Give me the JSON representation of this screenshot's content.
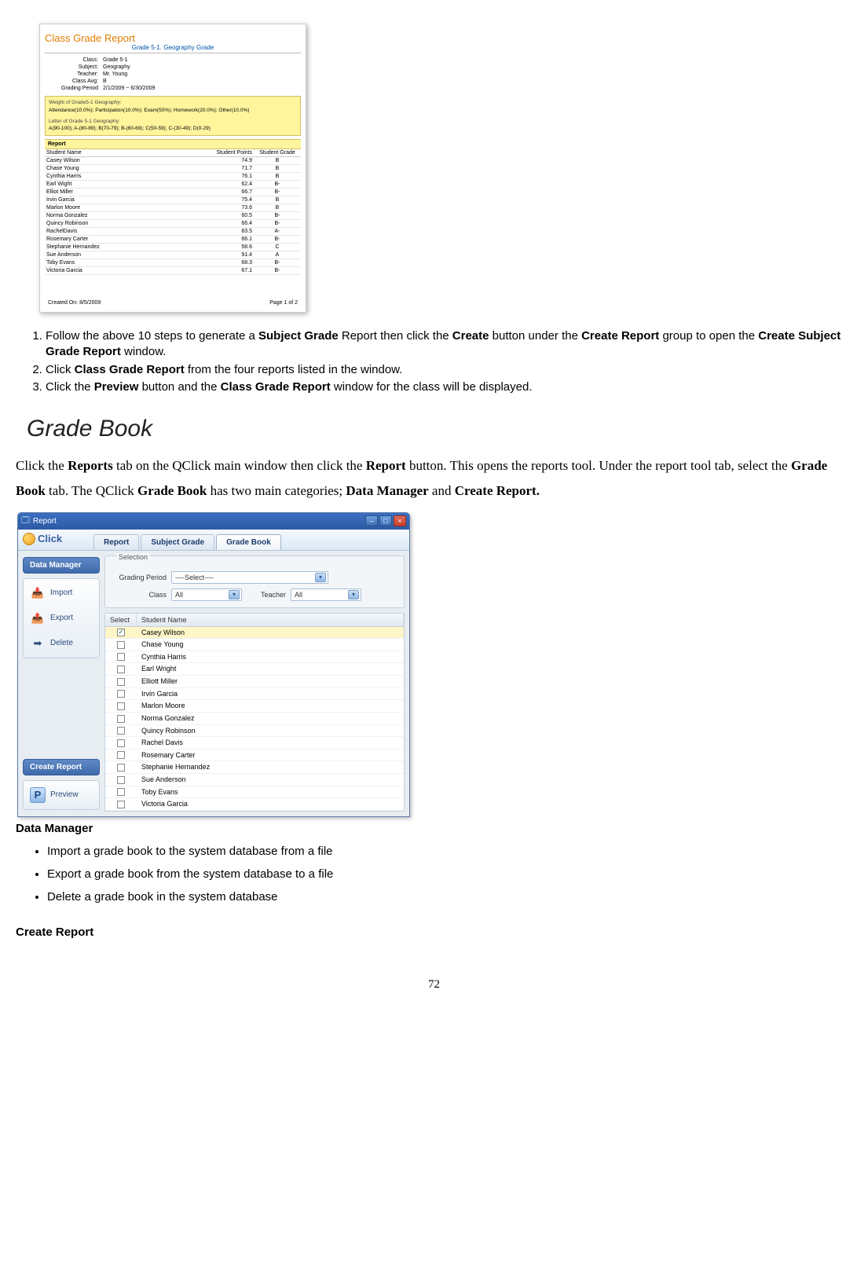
{
  "class_report": {
    "title": "Class Grade Report",
    "subtitle": "Grade 5-1. Geography Grade",
    "meta": {
      "class_lbl": "Class:",
      "class_val": "Grade 5-1",
      "subject_lbl": "Subject:",
      "subject_val": "Geography",
      "teacher_lbl": "Teacher:",
      "teacher_val": "Mr. Young",
      "avg_lbl": "Class Avg:",
      "avg_val": "B",
      "period_lbl": "Grading Period",
      "period_val": "2/1/2009 ~ 6/30/2009"
    },
    "weight_box": {
      "hdr": "Weight of Grade5-1 Geography:",
      "body": "Attendance(10.0%); Participation(10.0%); Exam(50%); Homework(20.0%); Other(10.0%)"
    },
    "letter_box": {
      "hdr": "Letter of Grade 5-1 Geography:",
      "body": "A(90-100); A-(80-89); B(70-79); B-(60-69); C(50-59); C-(30-49); D(0-29)"
    },
    "report_hdr": "Report",
    "columns": [
      "Student Name",
      "Student  Points",
      "Student Grade"
    ],
    "rows": [
      [
        "Casey Wilson",
        "74.9",
        "B"
      ],
      [
        "Chase Young",
        "71.7",
        "B"
      ],
      [
        "Cynthia Harris",
        "76.1",
        "B"
      ],
      [
        "Earl Wight",
        "62.4",
        "B-"
      ],
      [
        "Elliot Miller",
        "66.7",
        "B-"
      ],
      [
        "Irvin Garcia",
        "75.4",
        "B"
      ],
      [
        "Marlon Moore",
        "73.6",
        "B"
      ],
      [
        "Norma Gonzalez",
        "60.5",
        "B-"
      ],
      [
        "Quincy Robinson",
        "66.4",
        "B-"
      ],
      [
        "RachelDavis",
        "83.5",
        "A-"
      ],
      [
        "Rosemary Carter",
        "66.1",
        "B-"
      ],
      [
        "Stephanie Hernandez",
        "58.6",
        "C"
      ],
      [
        "Sue Anderson",
        "91.4",
        "A"
      ],
      [
        "Toby Evans",
        "68.3",
        "B-"
      ],
      [
        "Victoria Garcia",
        "67.1",
        "B-"
      ]
    ],
    "footer_left": "Created  On:  8/5/2009",
    "footer_right": "Page 1 of 2"
  },
  "steps": [
    {
      "pre": "Follow the above 10 steps to generate a ",
      "b1": "Subject Grade",
      "mid1": " Report then click the ",
      "b2": "Create",
      "mid2": " button under the ",
      "b3": "Create Report",
      "mid3": " group to open the ",
      "b4": "Create Subject Grade Report",
      "post": " window."
    },
    {
      "pre": "Click ",
      "b1": "Class Grade Report",
      "post": " from the four reports listed in the window."
    },
    {
      "pre": "Click the ",
      "b1": "Preview",
      "mid1": " button and the ",
      "b2": "Class Grade Report",
      "post": " window for the class will be displayed."
    }
  ],
  "section_heading": "Grade Book",
  "para": {
    "p1a": "Click the ",
    "p1b": "Reports",
    "p1c": " tab on the QClick main window then click the ",
    "p1d": "Report",
    "p1e": " button. This opens the reports tool. Under the report tool tab, select the ",
    "p1f": "Grade Book",
    "p1g": " tab. The QClick ",
    "p1h": "Grade Book",
    "p1i": " has two main categories; ",
    "p1j": "Data Manager",
    "p1k": " and ",
    "p1l": "Create Report."
  },
  "qclick": {
    "titlebar_text": "Report",
    "logo_text": "Click",
    "tabs": [
      "Report",
      "Subject Grade",
      "Grade Book"
    ],
    "active_tab_index": 2,
    "side": {
      "hdr1": "Data Manager",
      "items1": [
        {
          "icon": "📥",
          "label": "Import"
        },
        {
          "icon": "📤",
          "label": "Export"
        },
        {
          "icon": "➡",
          "label": "Delete"
        }
      ],
      "hdr2": "Create Report",
      "items2": [
        {
          "icon": "P",
          "label": "Preview"
        }
      ]
    },
    "selection": {
      "legend": "Selection",
      "period_lbl": "Grading Period",
      "period_val": "----Select----",
      "class_lbl": "Class",
      "class_val": "All",
      "teacher_lbl": "Teacher",
      "teacher_val": "All"
    },
    "list": {
      "columns": [
        "Select",
        "Student Name"
      ],
      "rows": [
        {
          "sel": true,
          "name": "Casey Wilson"
        },
        {
          "sel": false,
          "name": "Chase Young"
        },
        {
          "sel": false,
          "name": "Cynthia Harris"
        },
        {
          "sel": false,
          "name": "Earl Wright"
        },
        {
          "sel": false,
          "name": "Elliott Miller"
        },
        {
          "sel": false,
          "name": "Irvin Garcia"
        },
        {
          "sel": false,
          "name": "Marlon Moore"
        },
        {
          "sel": false,
          "name": "Norma Gonzalez"
        },
        {
          "sel": false,
          "name": "Quincy Robinson"
        },
        {
          "sel": false,
          "name": "Rachel Davis"
        },
        {
          "sel": false,
          "name": "Rosemary Carter"
        },
        {
          "sel": false,
          "name": "Stephanie Hernandez"
        },
        {
          "sel": false,
          "name": "Sue Anderson"
        },
        {
          "sel": false,
          "name": "Toby Evans"
        },
        {
          "sel": false,
          "name": "Victoria Garcia"
        }
      ]
    }
  },
  "data_manager_hdr": "Data Manager",
  "dm_bullets": [
    "Import a grade book to the system database from a file",
    "Export a grade book from the system database to a file",
    "Delete a grade book in the system database"
  ],
  "create_report_hdr": "Create Report",
  "page_number": "72"
}
